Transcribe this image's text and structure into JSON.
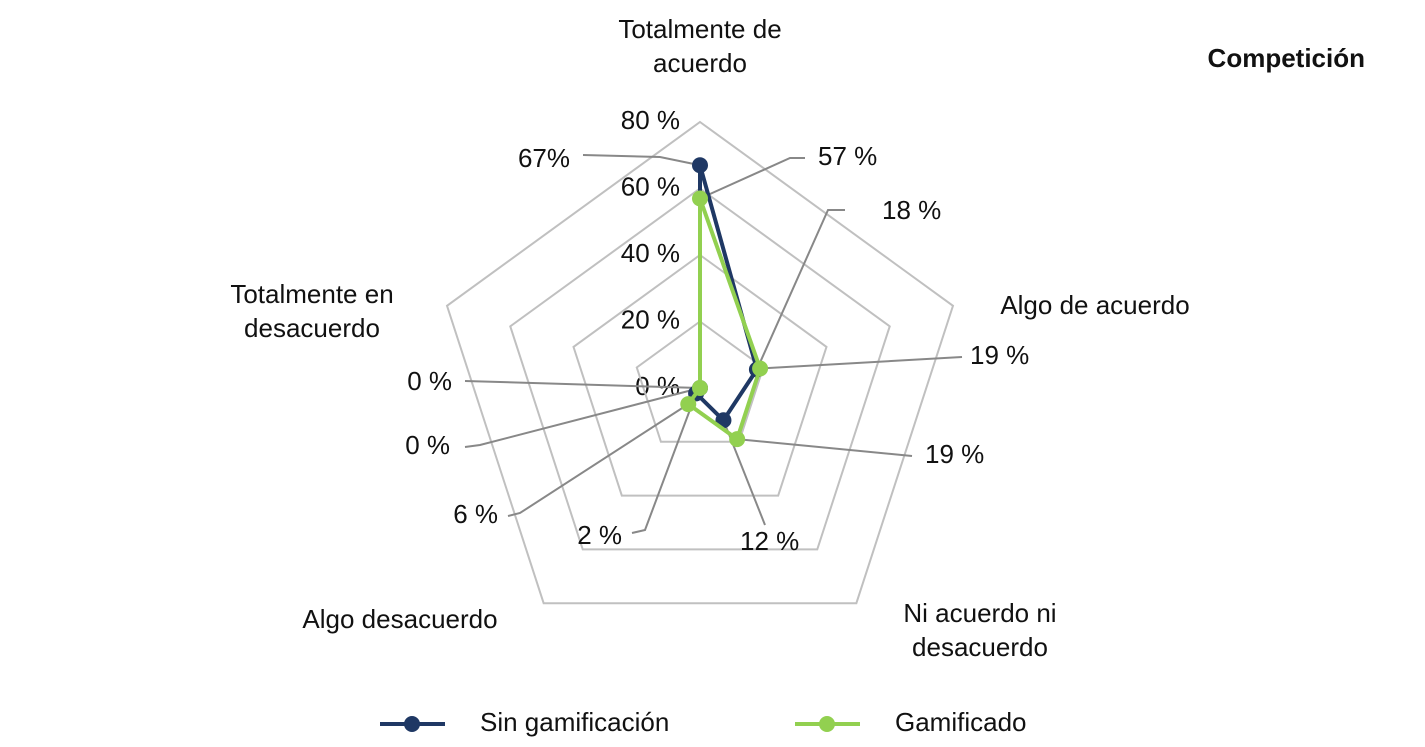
{
  "chart_data": {
    "type": "radar",
    "title": "Competición",
    "categories": [
      "Totalmente de acuerdo",
      "Algo de acuerdo",
      "Ni acuerdo ni desacuerdo",
      "Algo desacuerdo",
      "Totalmente en desacuerdo"
    ],
    "series": [
      {
        "name": "Sin gamificación",
        "color": "#1f3864",
        "values": [
          67,
          18,
          12,
          2,
          0
        ],
        "value_labels": [
          "67%",
          "18 %",
          "12 %",
          "2 %",
          "0 %"
        ]
      },
      {
        "name": "Gamificado",
        "color": "#92d050",
        "values": [
          57,
          19,
          19,
          6,
          0
        ],
        "value_labels": [
          "57 %",
          "19 %",
          "19 %",
          "6 %",
          "0 %"
        ]
      }
    ],
    "rlim": [
      0,
      80
    ],
    "rticks": [
      {
        "value": 0,
        "label": "0 %"
      },
      {
        "value": 20,
        "label": "20 %"
      },
      {
        "value": 40,
        "label": "40 %"
      },
      {
        "value": 60,
        "label": "60 %"
      },
      {
        "value": 80,
        "label": "80 %"
      }
    ],
    "grid": true,
    "legend": "bottom"
  }
}
